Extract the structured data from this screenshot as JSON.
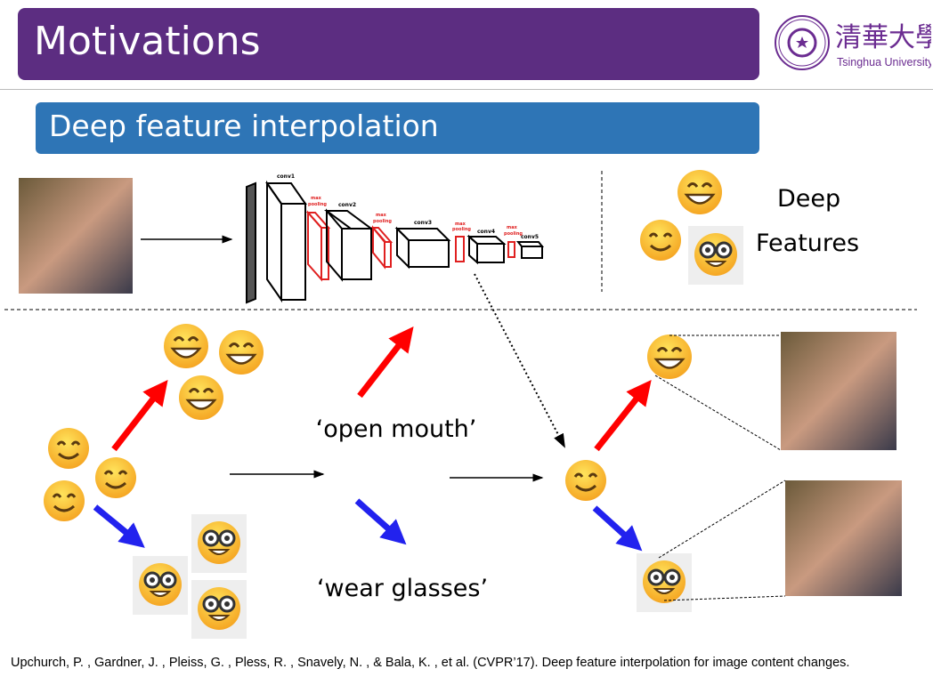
{
  "header": {
    "title": "Motivations",
    "logo_text": "Tsinghua University",
    "logo_chinese": "清華大學"
  },
  "section": {
    "title": "Deep feature interpolation"
  },
  "diagram": {
    "cnn_layers": [
      "conv1",
      "conv2",
      "conv3",
      "conv4",
      "conv5"
    ],
    "pooling_label": [
      "max",
      "pooling"
    ],
    "deep_features": [
      "Deep",
      "Features"
    ],
    "attr_open_mouth": "‘open mouth’",
    "attr_wear_glasses": "‘wear glasses’"
  },
  "colors": {
    "title_bar": "#5C2D81",
    "section_bar": "#2E75B6",
    "red_arrow": "#FF0000",
    "blue_arrow": "#2222EE",
    "pooling": "#E02020"
  },
  "icons": [
    "grin-emoji-icon",
    "smile-emoji-icon",
    "nerd-emoji-icon"
  ],
  "citation": "Upchurch, P. , Gardner, J. , Pleiss, G. , Pless, R. , Snavely, N. , & Bala, K. , et al. (CVPR’17). Deep feature interpolation for image content changes."
}
